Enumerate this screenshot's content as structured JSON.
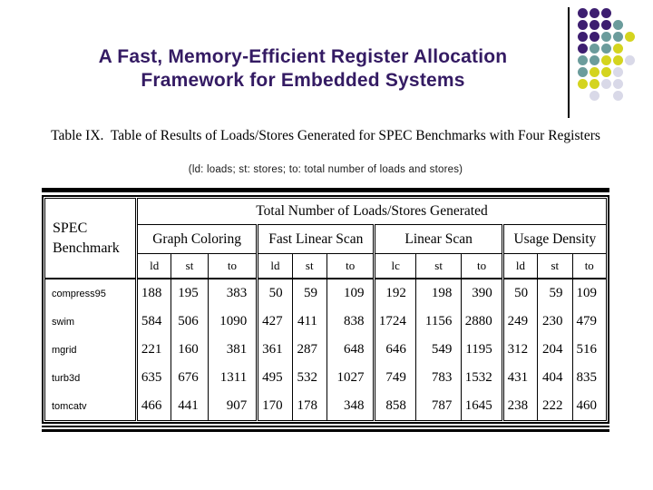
{
  "slide": {
    "title_line1": "A Fast, Memory-Efficient Register Allocation",
    "title_line2": "Framework for Embedded Systems",
    "title_color": "#341b63"
  },
  "decoration": {
    "colors": {
      "p": "#3d1e70",
      "t": "#6b9c9c",
      "y": "#d4d41f",
      "l": "#d9d9e8"
    },
    "pattern": [
      [
        "p",
        "p",
        "p",
        "",
        ""
      ],
      [
        "p",
        "p",
        "p",
        "t",
        ""
      ],
      [
        "p",
        "p",
        "t",
        "t",
        "y"
      ],
      [
        "p",
        "t",
        "t",
        "y",
        ""
      ],
      [
        "t",
        "t",
        "y",
        "y",
        "l"
      ],
      [
        "t",
        "y",
        "y",
        "l",
        ""
      ],
      [
        "y",
        "y",
        "l",
        "l",
        ""
      ],
      [
        "",
        "l",
        "",
        "l",
        ""
      ]
    ]
  },
  "table": {
    "caption": "Table IX.  Table of Results of Loads/Stores Generated for SPEC Benchmarks with Four Registers",
    "subtitle": "(ld: loads; st: stores; to: total number of loads and stores)",
    "row_header_line1": "SPEC",
    "row_header_line2": "Benchmark",
    "span_header": "Total Number of Loads/Stores Generated",
    "groups": [
      {
        "label": "Graph Coloring",
        "cols": [
          "ld",
          "st",
          "to"
        ]
      },
      {
        "label": "Fast Linear Scan",
        "cols": [
          "ld",
          "st",
          "to"
        ]
      },
      {
        "label": "Linear Scan",
        "cols": [
          "lc",
          "st",
          "to"
        ]
      },
      {
        "label": "Usage Density",
        "cols": [
          "ld",
          "st",
          "to"
        ]
      }
    ],
    "rows": [
      {
        "benchmark": "compress95",
        "values": [
          188,
          195,
          383,
          50,
          59,
          109,
          192,
          198,
          390,
          50,
          59,
          109
        ]
      },
      {
        "benchmark": "swim",
        "values": [
          584,
          506,
          1090,
          427,
          411,
          838,
          1724,
          1156,
          2880,
          249,
          230,
          479
        ]
      },
      {
        "benchmark": "mgrid",
        "values": [
          221,
          160,
          381,
          361,
          287,
          648,
          646,
          549,
          1195,
          312,
          204,
          516
        ]
      },
      {
        "benchmark": "turb3d",
        "values": [
          635,
          676,
          1311,
          495,
          532,
          1027,
          749,
          783,
          1532,
          431,
          404,
          835
        ]
      },
      {
        "benchmark": "tomcatv",
        "values": [
          466,
          441,
          907,
          170,
          178,
          348,
          858,
          787,
          1645,
          238,
          222,
          460
        ]
      }
    ]
  }
}
